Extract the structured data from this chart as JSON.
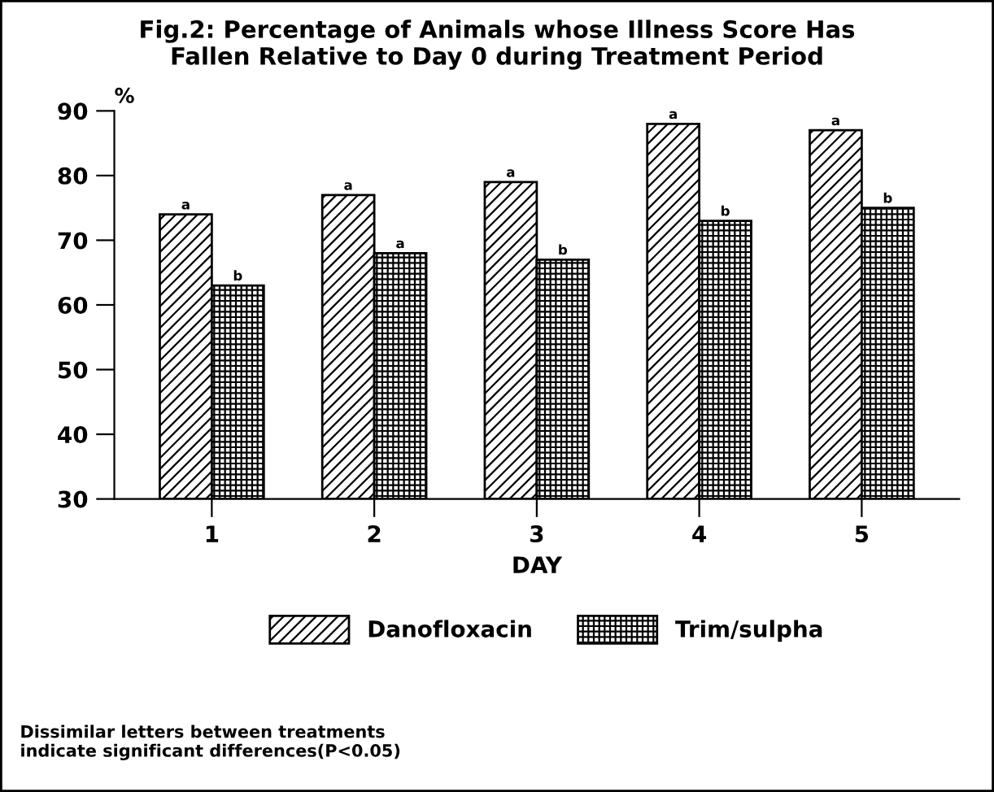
{
  "chart_data": {
    "type": "bar",
    "title": "Fig.2: Percentage of Animals whose Illness Score Has\nFallen Relative to Day 0 during Treatment Period",
    "ylabel": "%",
    "xlabel": "DAY",
    "categories": [
      "1",
      "2",
      "3",
      "4",
      "5"
    ],
    "series": [
      {
        "name": "Danofloxacin",
        "color": "#000000",
        "values": [
          74,
          77,
          79,
          88,
          87
        ]
      },
      {
        "name": "Trim/sulpha",
        "color": "#000000",
        "values": [
          63,
          68,
          67,
          73,
          75
        ]
      }
    ],
    "ylim": [
      30,
      90
    ],
    "yticks": [
      30,
      40,
      50,
      60,
      70,
      80,
      90
    ],
    "grid": false,
    "legend": "bottom",
    "annotations": [
      {
        "text": "a",
        "x": "1",
        "y": 74
      },
      {
        "text": "b",
        "x": "1",
        "y": 63
      },
      {
        "text": "a",
        "x": "2",
        "y": 77
      },
      {
        "text": "a",
        "x": "2",
        "y": 68
      },
      {
        "text": "a",
        "x": "3",
        "y": 79
      },
      {
        "text": "b",
        "x": "3",
        "y": 67
      },
      {
        "text": "a",
        "x": "4",
        "y": 88
      },
      {
        "text": "b",
        "x": "4",
        "y": 73
      },
      {
        "text": "a",
        "x": "5",
        "y": 87
      },
      {
        "text": "b",
        "x": "5",
        "y": 75
      },
      "Dissimilar letters between treatments\nindicate significant differences(P<0.05)"
    ]
  }
}
